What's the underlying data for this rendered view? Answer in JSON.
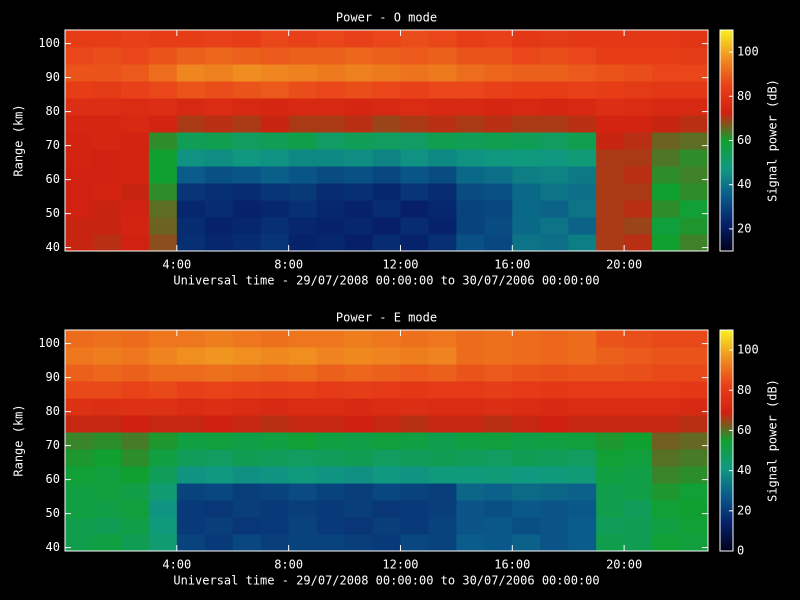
{
  "chart_data": [
    {
      "type": "heatmap",
      "title": "Power - O mode",
      "xlabel": "Universal time - 29/07/2008 00:00:00 to 30/07/2006 00:00:00",
      "ylabel": "Range (km)",
      "colorbar_label": "Signal power (dB)",
      "x": [
        0.5,
        1.5,
        2.5,
        3.5,
        4.5,
        5.5,
        6.5,
        7.5,
        8.5,
        9.5,
        10.5,
        11.5,
        12.5,
        13.5,
        14.5,
        15.5,
        16.5,
        17.5,
        18.5,
        19.5,
        20.5,
        21.5,
        22.5
      ],
      "y": [
        41.5,
        46.5,
        51.5,
        56.5,
        61.5,
        66.5,
        71.5,
        76.5,
        81.5,
        86.5,
        91.5,
        96.5,
        101.5
      ],
      "values": [
        [
          72,
          71,
          73,
          68,
          26,
          24,
          25,
          27,
          23,
          24,
          22,
          25,
          23,
          26,
          33,
          31,
          40,
          39,
          42,
          70,
          71,
          60,
          63
        ],
        [
          72,
          72,
          74,
          66,
          25,
          23,
          24,
          26,
          24,
          23,
          24,
          22,
          25,
          23,
          30,
          32,
          38,
          40,
          37,
          70,
          69,
          58,
          61
        ],
        [
          73,
          72,
          73,
          65,
          24,
          25,
          23,
          24,
          26,
          24,
          23,
          25,
          22,
          24,
          30,
          31,
          38,
          37,
          40,
          70,
          71,
          62,
          59
        ],
        [
          73,
          74,
          72,
          62,
          27,
          26,
          25,
          27,
          28,
          25,
          26,
          24,
          27,
          25,
          32,
          33,
          38,
          40,
          39,
          70,
          70,
          60,
          62
        ],
        [
          73,
          73,
          74,
          60,
          35,
          33,
          34,
          36,
          34,
          32,
          33,
          31,
          34,
          32,
          38,
          39,
          42,
          43,
          41,
          70,
          71,
          62,
          63
        ],
        [
          74,
          73,
          74,
          60,
          46,
          45,
          47,
          46,
          44,
          44,
          45,
          43,
          46,
          44,
          46,
          47,
          48,
          47,
          49,
          70,
          70,
          64,
          62
        ],
        [
          74,
          75,
          74,
          62,
          54,
          55,
          53,
          54,
          56,
          52,
          54,
          53,
          52,
          55,
          54,
          55,
          54,
          53,
          55,
          72,
          71,
          66,
          65
        ],
        [
          75,
          75,
          76,
          74,
          70,
          71,
          70,
          72,
          70,
          70,
          71,
          69,
          70,
          71,
          70,
          71,
          70,
          70,
          71,
          74,
          74,
          72,
          71
        ],
        [
          78,
          78,
          77,
          78,
          76,
          77,
          76,
          75,
          76,
          76,
          75,
          76,
          77,
          76,
          76,
          75,
          76,
          75,
          76,
          78,
          77,
          76,
          76
        ],
        [
          84,
          83,
          85,
          86,
          88,
          87,
          88,
          89,
          87,
          86,
          87,
          86,
          85,
          86,
          86,
          85,
          84,
          84,
          85,
          84,
          83,
          82,
          82
        ],
        [
          88,
          88,
          89,
          92,
          96,
          95,
          97,
          96,
          95,
          94,
          95,
          94,
          93,
          94,
          92,
          91,
          90,
          90,
          89,
          88,
          87,
          86,
          86
        ],
        [
          86,
          87,
          86,
          88,
          90,
          91,
          90,
          89,
          90,
          90,
          91,
          90,
          89,
          90,
          88,
          88,
          86,
          87,
          86,
          84,
          84,
          84,
          83
        ],
        [
          84,
          84,
          85,
          84,
          84,
          85,
          84,
          86,
          85,
          86,
          85,
          86,
          87,
          86,
          84,
          85,
          82,
          83,
          82,
          82,
          82,
          82,
          81
        ]
      ],
      "xlim": [
        0,
        23
      ],
      "ylim": [
        39,
        104
      ],
      "xticks": [
        {
          "value": 4,
          "label": "4:00"
        },
        {
          "value": 8,
          "label": "8:00"
        },
        {
          "value": 12,
          "label": "12:00"
        },
        {
          "value": 16,
          "label": "16:00"
        },
        {
          "value": 20,
          "label": "20:00"
        }
      ],
      "yticks": [
        40,
        50,
        60,
        70,
        80,
        90,
        100
      ],
      "zlim": [
        10,
        110
      ],
      "zticks": [
        20,
        40,
        60,
        80,
        100
      ],
      "colorscale": [
        "#000018",
        "#06206a",
        "#0a5a8a",
        "#109a80",
        "#10a030",
        "#d02010",
        "#e84018",
        "#f09020",
        "#f8f020"
      ]
    },
    {
      "type": "heatmap",
      "title": "Power - E mode",
      "xlabel": "Universal time - 29/07/2008 00:00:00 to 30/07/2006 00:00:00",
      "ylabel": "Range (km)",
      "colorbar_label": "Signal power (dB)",
      "x": [
        0.5,
        1.5,
        2.5,
        3.5,
        4.5,
        5.5,
        6.5,
        7.5,
        8.5,
        9.5,
        10.5,
        11.5,
        12.5,
        13.5,
        14.5,
        15.5,
        16.5,
        17.5,
        18.5,
        19.5,
        20.5,
        21.5,
        22.5
      ],
      "y": [
        41.5,
        46.5,
        51.5,
        56.5,
        61.5,
        66.5,
        71.5,
        76.5,
        81.5,
        86.5,
        91.5,
        96.5,
        101.5
      ],
      "values": [
        [
          50,
          52,
          49,
          44,
          22,
          20,
          23,
          21,
          22,
          22,
          21,
          20,
          23,
          22,
          28,
          27,
          29,
          26,
          28,
          50,
          49,
          54,
          53
        ],
        [
          50,
          49,
          51,
          42,
          20,
          21,
          19,
          20,
          22,
          20,
          19,
          21,
          20,
          22,
          26,
          27,
          25,
          26,
          28,
          48,
          49,
          52,
          54
        ],
        [
          52,
          51,
          53,
          40,
          20,
          19,
          21,
          20,
          21,
          20,
          21,
          19,
          20,
          21,
          26,
          25,
          27,
          26,
          27,
          50,
          48,
          54,
          55
        ],
        [
          52,
          53,
          51,
          44,
          22,
          23,
          21,
          22,
          24,
          22,
          21,
          23,
          22,
          21,
          30,
          29,
          31,
          30,
          29,
          50,
          51,
          56,
          54
        ],
        [
          54,
          53,
          55,
          48,
          40,
          41,
          39,
          40,
          42,
          40,
          39,
          41,
          40,
          42,
          42,
          43,
          41,
          42,
          43,
          52,
          51,
          58,
          57
        ],
        [
          56,
          55,
          57,
          52,
          48,
          47,
          49,
          48,
          47,
          48,
          49,
          47,
          48,
          49,
          48,
          47,
          49,
          48,
          47,
          54,
          53,
          60,
          59
        ],
        [
          58,
          57,
          59,
          56,
          52,
          53,
          51,
          52,
          54,
          52,
          51,
          53,
          52,
          50,
          52,
          53,
          51,
          52,
          53,
          56,
          55,
          62,
          61
        ],
        [
          68,
          68,
          69,
          68,
          68,
          69,
          68,
          67,
          68,
          68,
          69,
          68,
          67,
          68,
          68,
          67,
          68,
          69,
          68,
          68,
          68,
          68,
          67
        ],
        [
          76,
          75,
          76,
          76,
          74,
          75,
          74,
          73,
          74,
          74,
          73,
          74,
          75,
          74,
          74,
          75,
          74,
          73,
          74,
          74,
          74,
          74,
          73
        ],
        [
          84,
          84,
          83,
          84,
          82,
          83,
          82,
          81,
          82,
          80,
          81,
          80,
          79,
          80,
          80,
          81,
          80,
          79,
          80,
          80,
          80,
          80,
          79
        ],
        [
          88,
          89,
          88,
          90,
          90,
          91,
          90,
          89,
          90,
          88,
          89,
          88,
          87,
          88,
          86,
          87,
          86,
          85,
          86,
          86,
          85,
          84,
          84
        ],
        [
          92,
          93,
          92,
          94,
          96,
          97,
          96,
          95,
          96,
          94,
          95,
          94,
          93,
          94,
          90,
          91,
          90,
          89,
          90,
          88,
          87,
          86,
          86
        ],
        [
          90,
          91,
          90,
          92,
          92,
          93,
          92,
          91,
          92,
          92,
          93,
          92,
          91,
          92,
          90,
          91,
          90,
          89,
          90,
          86,
          85,
          84,
          84
        ]
      ],
      "xlim": [
        0,
        23
      ],
      "ylim": [
        39,
        104
      ],
      "xticks": [
        {
          "value": 4,
          "label": "4:00"
        },
        {
          "value": 8,
          "label": "8:00"
        },
        {
          "value": 12,
          "label": "12:00"
        },
        {
          "value": 16,
          "label": "16:00"
        },
        {
          "value": 20,
          "label": "20:00"
        }
      ],
      "yticks": [
        40,
        50,
        60,
        70,
        80,
        90,
        100
      ],
      "zlim": [
        0,
        110
      ],
      "zticks": [
        0,
        20,
        40,
        60,
        80,
        100
      ],
      "colorscale": [
        "#000018",
        "#06206a",
        "#0a5a8a",
        "#109a80",
        "#10a030",
        "#d02010",
        "#e84018",
        "#f09020",
        "#f8f020"
      ]
    }
  ]
}
